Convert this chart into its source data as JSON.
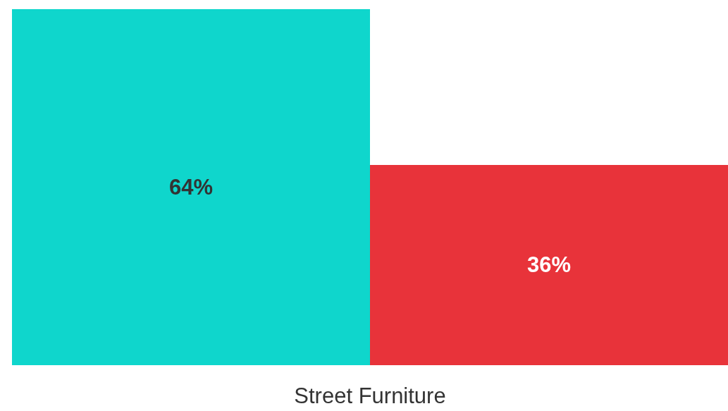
{
  "chart_data": {
    "type": "bar",
    "xlabel": "Street Furniture",
    "categories": [
      null,
      null
    ],
    "values": [
      64,
      36
    ],
    "colors": [
      "#0fd6cc",
      "#e8333a"
    ],
    "value_labels": [
      "64%",
      "36%"
    ]
  }
}
